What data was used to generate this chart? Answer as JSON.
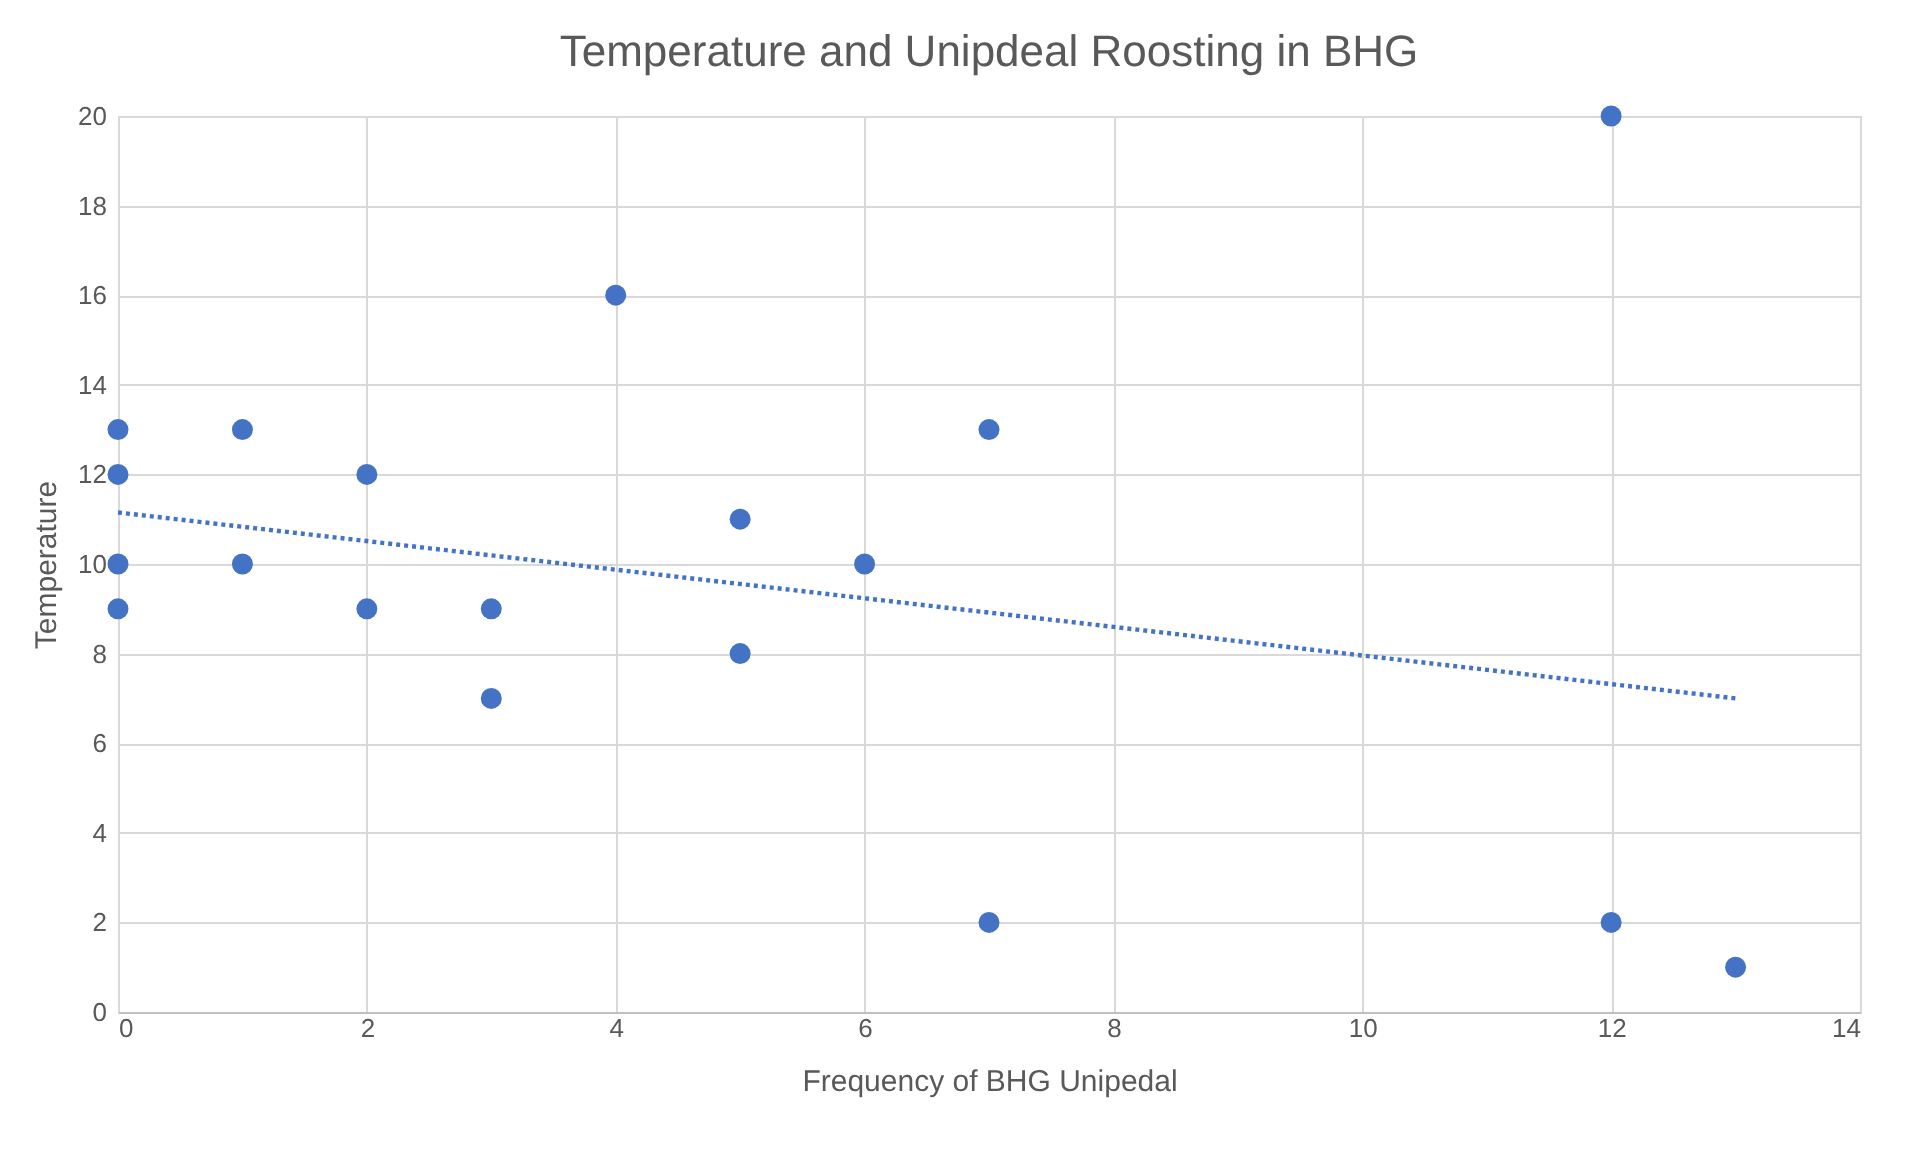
{
  "chart_data": {
    "type": "scatter",
    "title": "Temperature and Unipdeal Roosting in BHG",
    "xlabel": "Frequency of BHG Unipedal",
    "ylabel": "Temperature",
    "x": [
      0,
      0,
      0,
      0,
      1,
      1,
      2,
      2,
      3,
      3,
      4,
      5,
      5,
      6,
      7,
      7,
      12,
      12,
      13
    ],
    "series": [
      {
        "color": "#4472c4",
        "marker": "circle",
        "values": [
          13,
          12,
          10,
          9,
          13,
          10,
          12,
          9,
          9,
          7,
          16,
          11,
          8,
          10,
          13,
          2,
          20,
          2,
          1
        ]
      },
      {
        "type": "line",
        "color": "#4472c4",
        "line_style": "dotted",
        "x": [
          0,
          13
        ],
        "values": [
          11.15,
          7.0
        ]
      }
    ],
    "xlim": [
      0,
      14
    ],
    "xticks": [
      0,
      2,
      4,
      6,
      8,
      10,
      12,
      14
    ],
    "ylim": [
      0,
      20
    ],
    "yticks": [
      0,
      2,
      4,
      6,
      8,
      10,
      12,
      14,
      16,
      18,
      20
    ],
    "grid": true
  }
}
